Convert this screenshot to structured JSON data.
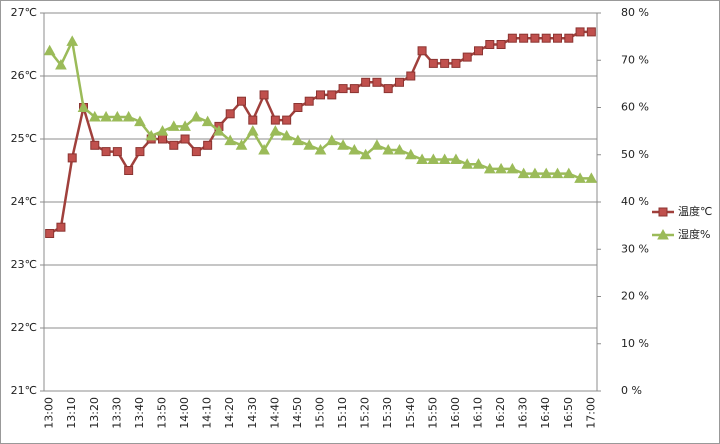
{
  "chart_data": {
    "type": "line",
    "categories": [
      "13:00",
      null,
      "13:10",
      null,
      "13:20",
      null,
      "13:30",
      null,
      "13:40",
      null,
      "13:50",
      null,
      "14:00",
      null,
      "14:10",
      null,
      "14:20",
      null,
      "14:30",
      null,
      "14:40",
      null,
      "14:50",
      null,
      "15:00",
      null,
      "15:10",
      null,
      "15:20",
      null,
      "15:30",
      null,
      "15:40",
      null,
      "15:50",
      null,
      "16:00",
      null,
      "16:10",
      null,
      "16:20",
      null,
      "16:30",
      null,
      "16:40",
      null,
      "16:50",
      null,
      "17:00"
    ],
    "series": [
      {
        "name": "温度℃",
        "color": "#c0504d",
        "marker": "square",
        "values": [
          23.5,
          23.6,
          24.7,
          25.5,
          24.9,
          24.8,
          24.8,
          24.5,
          24.8,
          25.0,
          25.0,
          24.9,
          25.0,
          24.8,
          24.9,
          25.2,
          25.4,
          25.6,
          25.3,
          25.7,
          25.3,
          25.3,
          25.5,
          25.6,
          25.7,
          25.7,
          25.8,
          25.8,
          25.9,
          25.9,
          25.8,
          25.9,
          26.0,
          26.4,
          26.2,
          26.2,
          26.2,
          26.3,
          26.4,
          26.5,
          26.5,
          26.6,
          26.6,
          26.6,
          26.6,
          26.6,
          26.6,
          26.7,
          26.7
        ]
      },
      {
        "name": "湿度%",
        "color": "#9bbb59",
        "marker": "triangle",
        "axis": "y2",
        "values": [
          72,
          69,
          74,
          60,
          58,
          58,
          58,
          58,
          57,
          54,
          55,
          56,
          56,
          58,
          57,
          55,
          53,
          52,
          55,
          51,
          55,
          54,
          53,
          52,
          51,
          53,
          52,
          51,
          50,
          52,
          51,
          51,
          50,
          49,
          49,
          49,
          49,
          48,
          48,
          47,
          47,
          47,
          46,
          46,
          46,
          46,
          46,
          45,
          45
        ]
      }
    ],
    "ylim": [
      21,
      27
    ],
    "yticks": [
      {
        "value": 21,
        "label": "21℃"
      },
      {
        "value": 22,
        "label": "22℃"
      },
      {
        "value": 23,
        "label": "23℃"
      },
      {
        "value": 24,
        "label": "24℃"
      },
      {
        "value": 25,
        "label": "25℃"
      },
      {
        "value": 26,
        "label": "26℃"
      },
      {
        "value": 27,
        "label": "27℃"
      }
    ],
    "y2lim": [
      0,
      80
    ],
    "y2ticks": [
      {
        "value": 0,
        "label": "0 %"
      },
      {
        "value": 10,
        "label": "10 %"
      },
      {
        "value": 20,
        "label": "20 %"
      },
      {
        "value": 30,
        "label": "30 %"
      },
      {
        "value": 40,
        "label": "40 %"
      },
      {
        "value": 50,
        "label": "50 %"
      },
      {
        "value": 60,
        "label": "60 %"
      },
      {
        "value": 70,
        "label": "70 %"
      },
      {
        "value": 80,
        "label": "80 %"
      }
    ],
    "grid": true,
    "legend": "right"
  }
}
